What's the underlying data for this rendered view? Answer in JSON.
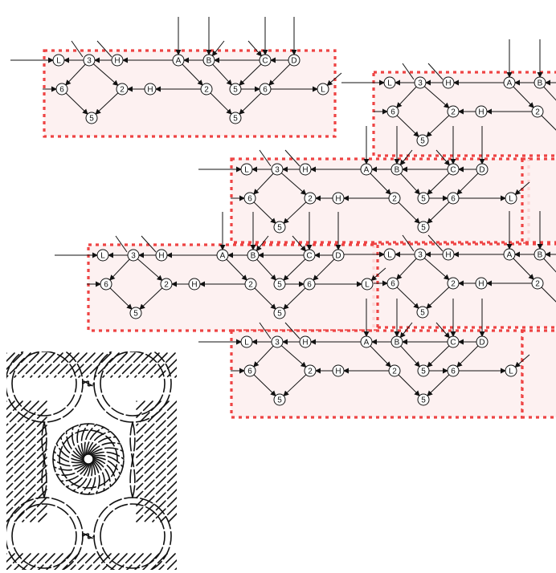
{
  "colors": {
    "region_fill": "#fdeeee",
    "region_border": "#ee4444",
    "ink": "#111111"
  },
  "module": {
    "nodes": [
      {
        "id": "L1",
        "label": "L"
      },
      {
        "id": "t3",
        "label": "3"
      },
      {
        "id": "H1",
        "label": "H"
      },
      {
        "id": "A",
        "label": "A"
      },
      {
        "id": "B",
        "label": "B"
      },
      {
        "id": "C",
        "label": "C"
      },
      {
        "id": "D",
        "label": "D"
      },
      {
        "id": "s6a",
        "label": "6"
      },
      {
        "id": "s2a",
        "label": "2"
      },
      {
        "id": "H2",
        "label": "H"
      },
      {
        "id": "s2b",
        "label": "2"
      },
      {
        "id": "s5a",
        "label": "5"
      },
      {
        "id": "s6b",
        "label": "6"
      },
      {
        "id": "L2",
        "label": "L"
      },
      {
        "id": "s5b",
        "label": "5"
      },
      {
        "id": "s5c",
        "label": "5"
      }
    ]
  },
  "lower_left_figure": {
    "label": "interlaced knot pattern"
  }
}
